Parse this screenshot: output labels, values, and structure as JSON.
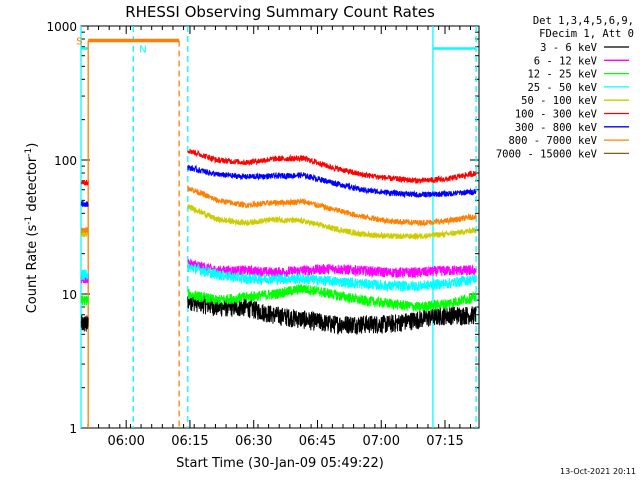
{
  "chart_data": {
    "type": "line",
    "title": "RHESSI Observing Summary Count Rates",
    "xlabel": "Start Time (30-Jan-09 05:49:22)",
    "ylabel_main": "Count Rate (s",
    "ylabel_sup1": "-1",
    "ylabel_mid": " detector",
    "ylabel_sup2": "-1",
    "ylabel_end": ")",
    "yscale": "log",
    "ylim": [
      1,
      1000
    ],
    "x_tick_labels": [
      "06:00",
      "06:15",
      "06:30",
      "06:45",
      "07:00",
      "07:15"
    ],
    "x_tick_hours": [
      6.0,
      6.25,
      6.5,
      6.75,
      7.0,
      7.25
    ],
    "xlim_hours": [
      5.8228,
      7.3833
    ],
    "y_tick_labels": [
      "1",
      "10",
      "100",
      "1000"
    ],
    "y_tick_values": [
      1,
      10,
      100,
      1000
    ],
    "legend_header": [
      "Det 1,3,4,5,6,9,",
      "FDecim 1, Att 0"
    ],
    "legend_position": "right",
    "series": [
      {
        "name": "3 - 6 keV",
        "color": "#000000",
        "before": 6,
        "after": [
          9,
          8,
          8,
          7,
          6.5,
          6,
          6,
          6,
          6.5,
          7,
          7
        ]
      },
      {
        "name": "6 - 12 keV",
        "color": "#ff00ff",
        "before": 13,
        "after": [
          17,
          15,
          15,
          14.5,
          15,
          15.5,
          15,
          14.5,
          14.5,
          15,
          15
        ]
      },
      {
        "name": "12 - 25 keV",
        "color": "#00ff00",
        "before": 9,
        "after": [
          10,
          9,
          9.5,
          10,
          11,
          10,
          9,
          8.5,
          8,
          8.5,
          9.5
        ]
      },
      {
        "name": "25 - 50 keV",
        "color": "#00ffff",
        "before": 14,
        "after": [
          16,
          14,
          13,
          13,
          13,
          12.5,
          12,
          11.5,
          11.5,
          12,
          13
        ]
      },
      {
        "name": "50 - 100 keV",
        "color": "#cccc00",
        "before": 28,
        "after": [
          45,
          36,
          34,
          36,
          35,
          31,
          28,
          27,
          27,
          28,
          30
        ]
      },
      {
        "name": "100 - 300 keV",
        "color": "#ff0000",
        "before": 68,
        "after": [
          118,
          100,
          96,
          102,
          103,
          88,
          78,
          73,
          70,
          72,
          80
        ]
      },
      {
        "name": "300 - 800 keV",
        "color": "#0000ff",
        "before": 47,
        "after": [
          88,
          78,
          75,
          76,
          77,
          68,
          60,
          57,
          55,
          56,
          58
        ]
      },
      {
        "name": "800 - 7000 keV",
        "color": "#ff8000",
        "before": 30,
        "after": [
          62,
          50,
          46,
          48,
          49,
          43,
          38,
          35,
          34,
          35,
          38
        ]
      },
      {
        "name": "7000 - 15000 keV",
        "color": "#806000",
        "before": 1,
        "after": [
          1,
          1,
          1,
          1,
          1,
          1,
          1,
          1,
          1,
          1,
          1
        ]
      }
    ],
    "data_gap_hours": [
      5.851,
      6.2416
    ],
    "data_end_hours": 7.372,
    "night_markers": {
      "label": "N",
      "color": "#00ffff",
      "level": 680,
      "intervals": [
        [
          5.8228,
          5.851
        ],
        [
          7.2027,
          7.372
        ]
      ],
      "edges": [
        5.8228,
        6.0278,
        6.2416,
        7.2027,
        7.372
      ]
    },
    "saa_markers": {
      "label": "S",
      "color": "#ff8000",
      "level": 780,
      "intervals": [
        [
          5.851,
          6.2076
        ]
      ],
      "edges": [
        5.851,
        6.2076
      ]
    },
    "timestamp": "13-Oct-2021 20:11"
  }
}
